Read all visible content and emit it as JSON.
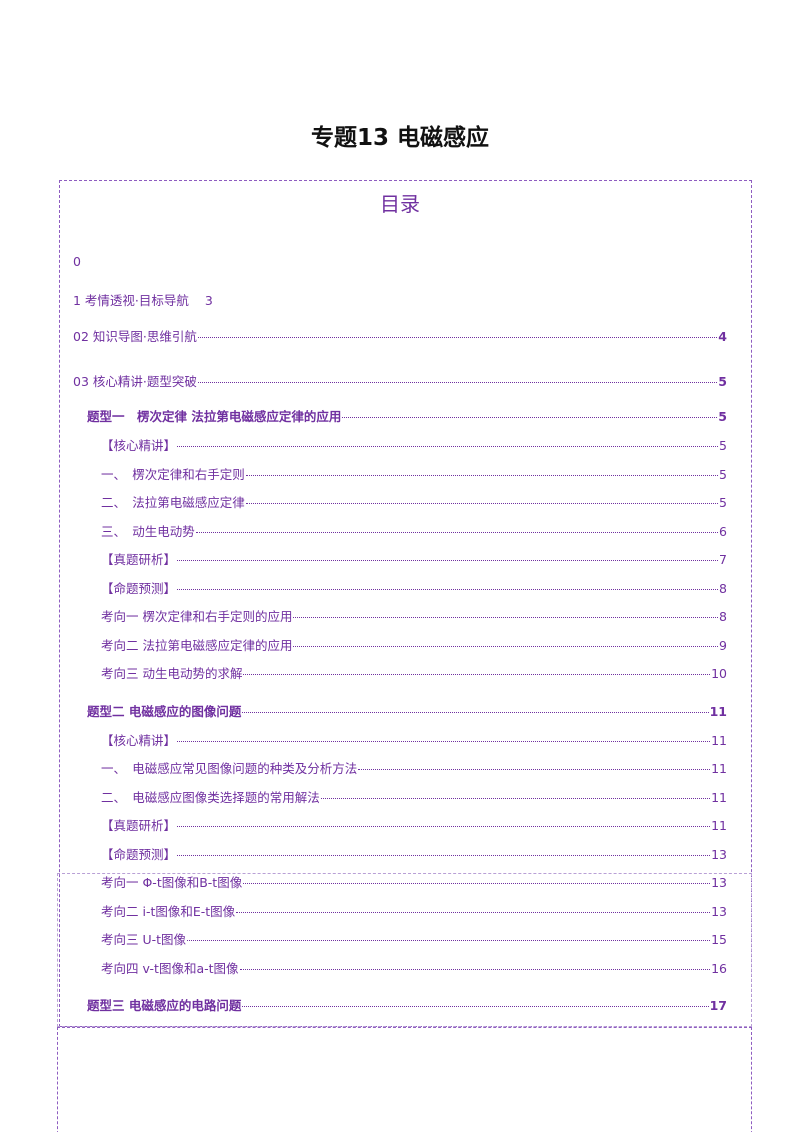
{
  "header": {
    "title": "专题13  电磁感应"
  },
  "toc": {
    "heading": "目录",
    "entries": [
      {
        "text": "0"
      },
      {
        "text": "1 考情透视·目标导航",
        "page": 3,
        "dots": false
      },
      {
        "text": "02 知识导图·思维引航",
        "page": 4,
        "bold": true
      },
      {
        "text": "03 核心精讲·题型突破",
        "page": 5,
        "bold": true
      }
    ],
    "sections": [
      {
        "title": "题型一　楞次定律  法拉第电磁感应定律的应用",
        "page": 5,
        "items": [
          {
            "text": "【核心精讲】",
            "page": 5
          },
          {
            "text": "一、　楞次定律和右手定则",
            "page": 5
          },
          {
            "text": "二、　法拉第电磁感应定律",
            "page": 5
          },
          {
            "text": "三、　动生电动势",
            "page": 6
          },
          {
            "text": "【真题研析】",
            "page": 7
          },
          {
            "text": "【命题预测】",
            "page": 8
          },
          {
            "text": "考向一  楞次定律和右手定则的应用",
            "page": 8
          },
          {
            "text": "考向二  法拉第电磁感应定律的应用",
            "page": 9
          },
          {
            "text": "考向三  动生电动势的求解",
            "page": 10
          }
        ]
      },
      {
        "title": "题型二  电磁感应的图像问题",
        "page": 11,
        "items": [
          {
            "text": "【核心精讲】",
            "page": 11
          },
          {
            "text": "一、　电磁感应常见图像问题的种类及分析方法",
            "page": 11
          },
          {
            "text": "二、　电磁感应图像类选择题的常用解法",
            "page": 11
          },
          {
            "text": "【真题研析】",
            "page": 11
          },
          {
            "text": "【命题预测】",
            "page": 13
          },
          {
            "text": "考向一  Φ-t图像和B-t图像",
            "page": 13
          },
          {
            "text": "考向二  i-t图像和E-t图像",
            "page": 13
          },
          {
            "text": "考向三  U-t图像",
            "page": 15
          },
          {
            "text": "考向四  v-t图像和a-t图像",
            "page": 16
          }
        ]
      },
      {
        "title": "题型三  电磁感应的电路问题",
        "page": 17,
        "items": []
      }
    ]
  }
}
